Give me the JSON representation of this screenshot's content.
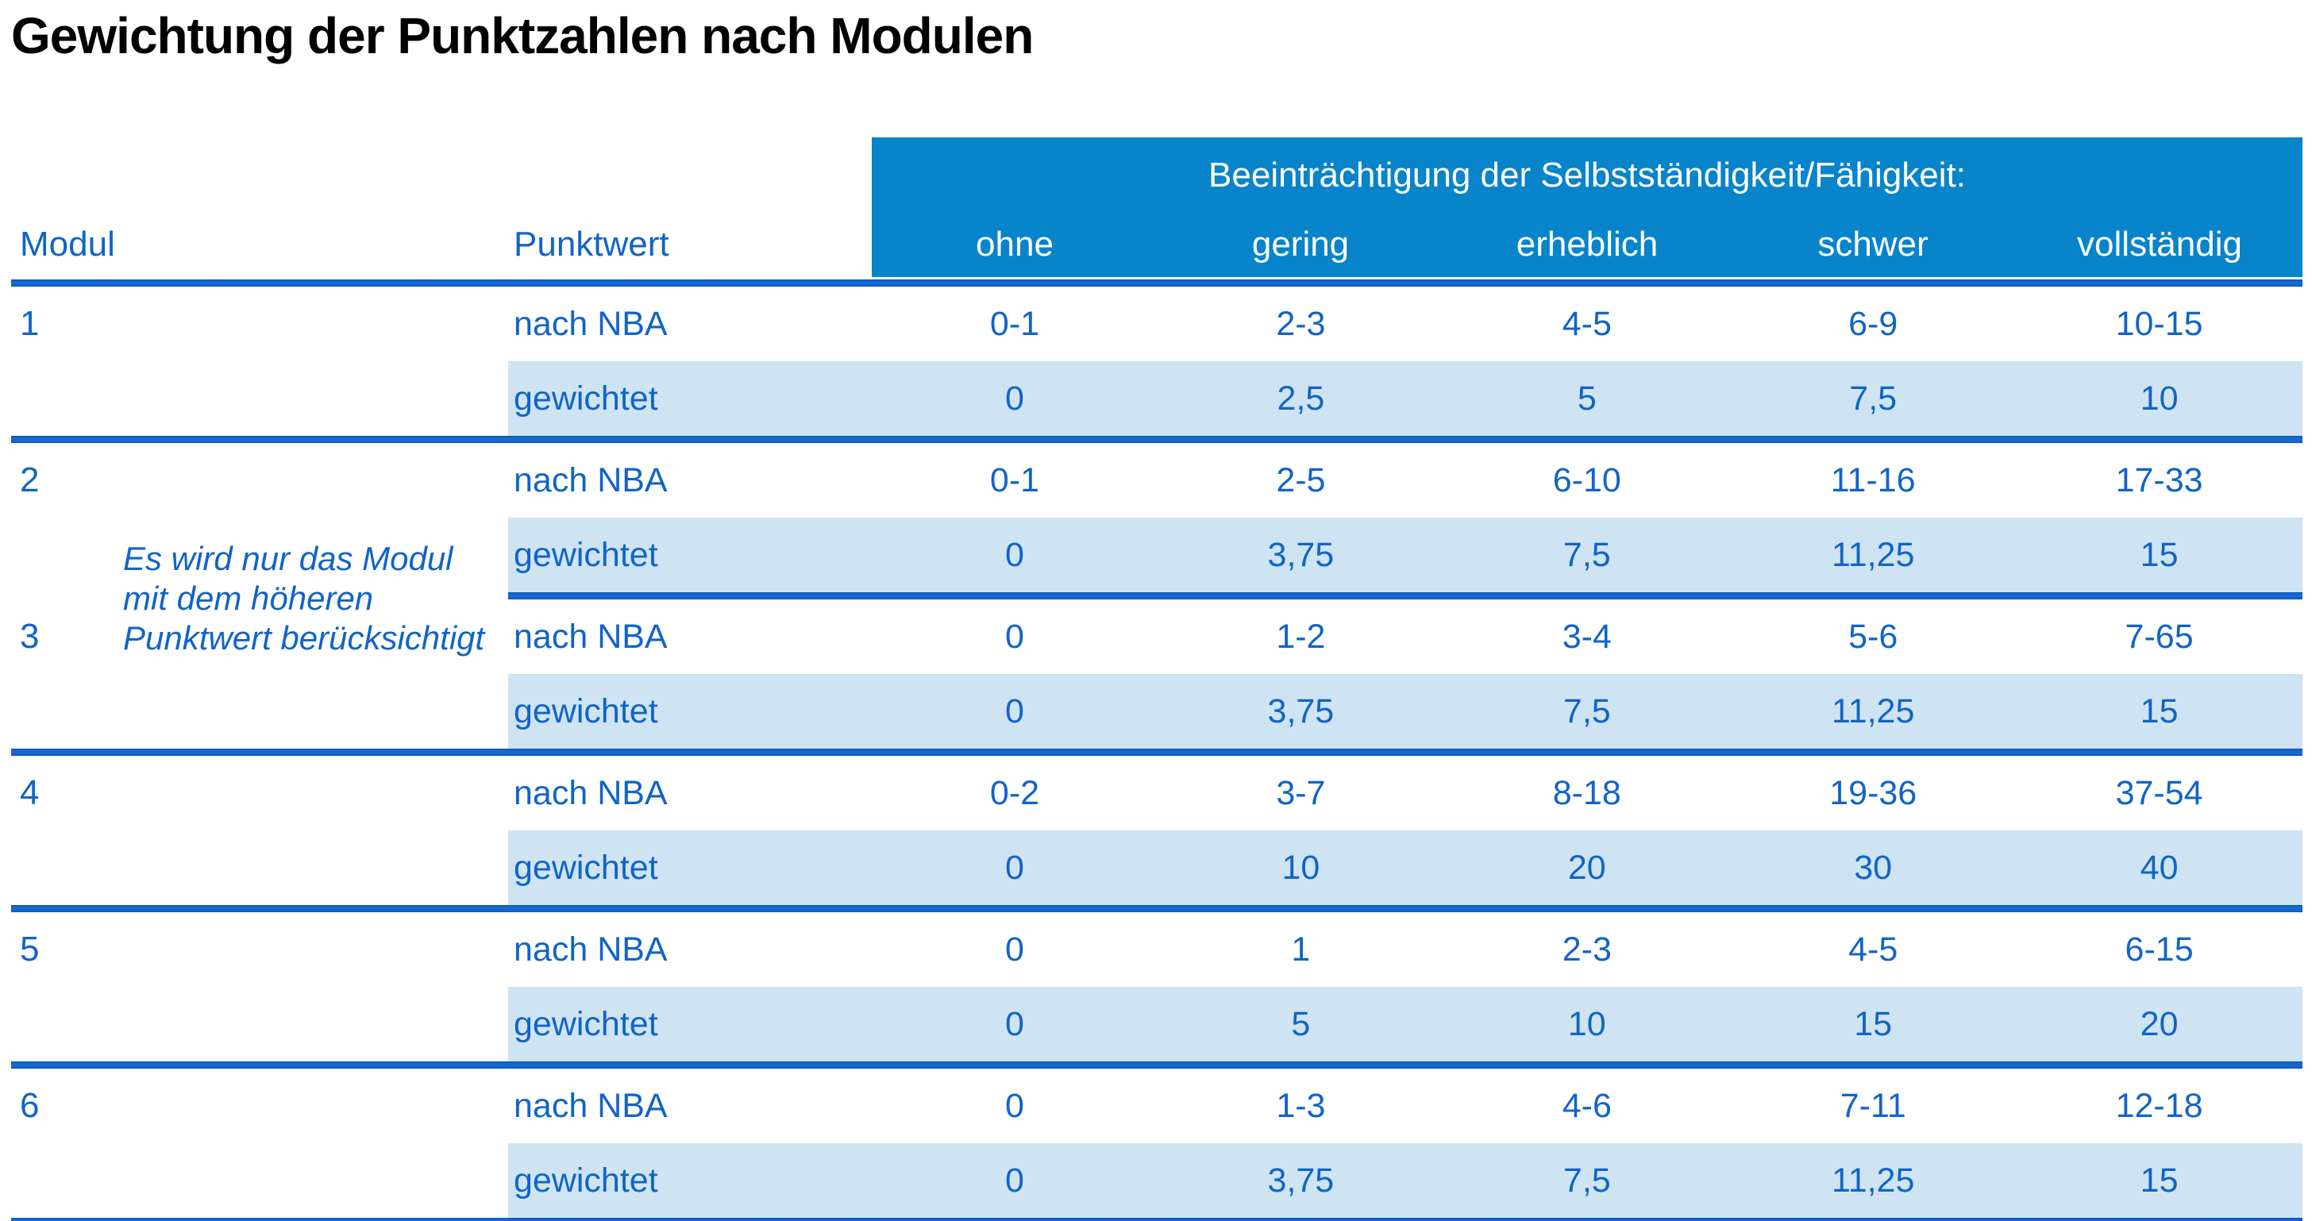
{
  "title": "Gewichtung der Punktzahlen nach Modulen",
  "colors": {
    "header_bg": "#0884cb",
    "header_text": "#ffffff",
    "weighted_row_bg": "#cfe4f2",
    "divider_blue": "#1468d4",
    "text_blue": "#1164c8",
    "title_color": "#000000"
  },
  "table": {
    "modul_header": "Modul",
    "punktwert_header": "Punktwert",
    "group_header": "Beeinträchtigung der Selbstständigkeit/Fähigkeit:",
    "severity_columns": [
      "ohne",
      "gering",
      "erheblich",
      "schwer",
      "vollständig"
    ],
    "row_labels": {
      "nba": "nach NBA",
      "weighted": "gewichtet"
    },
    "note": {
      "lines": [
        "Es wird nur das Modul",
        "mit dem höheren",
        "Punktwert berücksichtigt"
      ]
    },
    "modules": [
      {
        "number": "1",
        "divider_before": "full",
        "nba": [
          "0-1",
          "2-3",
          "4-5",
          "6-9",
          "10-15"
        ],
        "weighted": [
          "0",
          "2,5",
          "5",
          "7,5",
          "10"
        ]
      },
      {
        "number": "2",
        "divider_before": "full",
        "nba": [
          "0-1",
          "2-5",
          "6-10",
          "11-16",
          "17-33"
        ],
        "weighted": [
          "0",
          "3,75",
          "7,5",
          "11,25",
          "15"
        ]
      },
      {
        "number": "3",
        "divider_before": "partial",
        "nba": [
          "0",
          "1-2",
          "3-4",
          "5-6",
          "7-65"
        ],
        "weighted": [
          "0",
          "3,75",
          "7,5",
          "11,25",
          "15"
        ]
      },
      {
        "number": "4",
        "divider_before": "full",
        "nba": [
          "0-2",
          "3-7",
          "8-18",
          "19-36",
          "37-54"
        ],
        "weighted": [
          "0",
          "10",
          "20",
          "30",
          "40"
        ]
      },
      {
        "number": "5",
        "divider_before": "full",
        "nba": [
          "0",
          "1",
          "2-3",
          "4-5",
          "6-15"
        ],
        "weighted": [
          "0",
          "5",
          "10",
          "15",
          "20"
        ]
      },
      {
        "number": "6",
        "divider_before": "full",
        "nba": [
          "0",
          "1-3",
          "4-6",
          "7-11",
          "12-18"
        ],
        "weighted": [
          "0",
          "3,75",
          "7,5",
          "11,25",
          "15"
        ]
      }
    ]
  }
}
